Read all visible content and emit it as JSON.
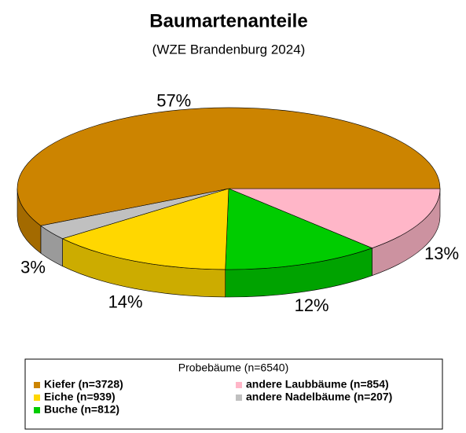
{
  "chart_data": {
    "type": "pie3d",
    "title": "Baumartenanteile",
    "subtitle": "(WZE Brandenburg 2024)",
    "legend_title": "Probebäume (n=6540)",
    "categories": [
      "Kiefer (n=3728)",
      "Eiche (n=939)",
      "Buche (n=812)",
      "andere Laubbäume (n=854)",
      "andere Nadelbäume (n=207)"
    ],
    "values": [
      57,
      14,
      12,
      13,
      3
    ],
    "value_labels": [
      "57%",
      "14%",
      "12%",
      "13%",
      "3%"
    ],
    "colors": [
      "#cc8400",
      "#ffd700",
      "#00cc00",
      "#ffb6c8",
      "#c0c0c0"
    ],
    "legend": "bottom"
  }
}
